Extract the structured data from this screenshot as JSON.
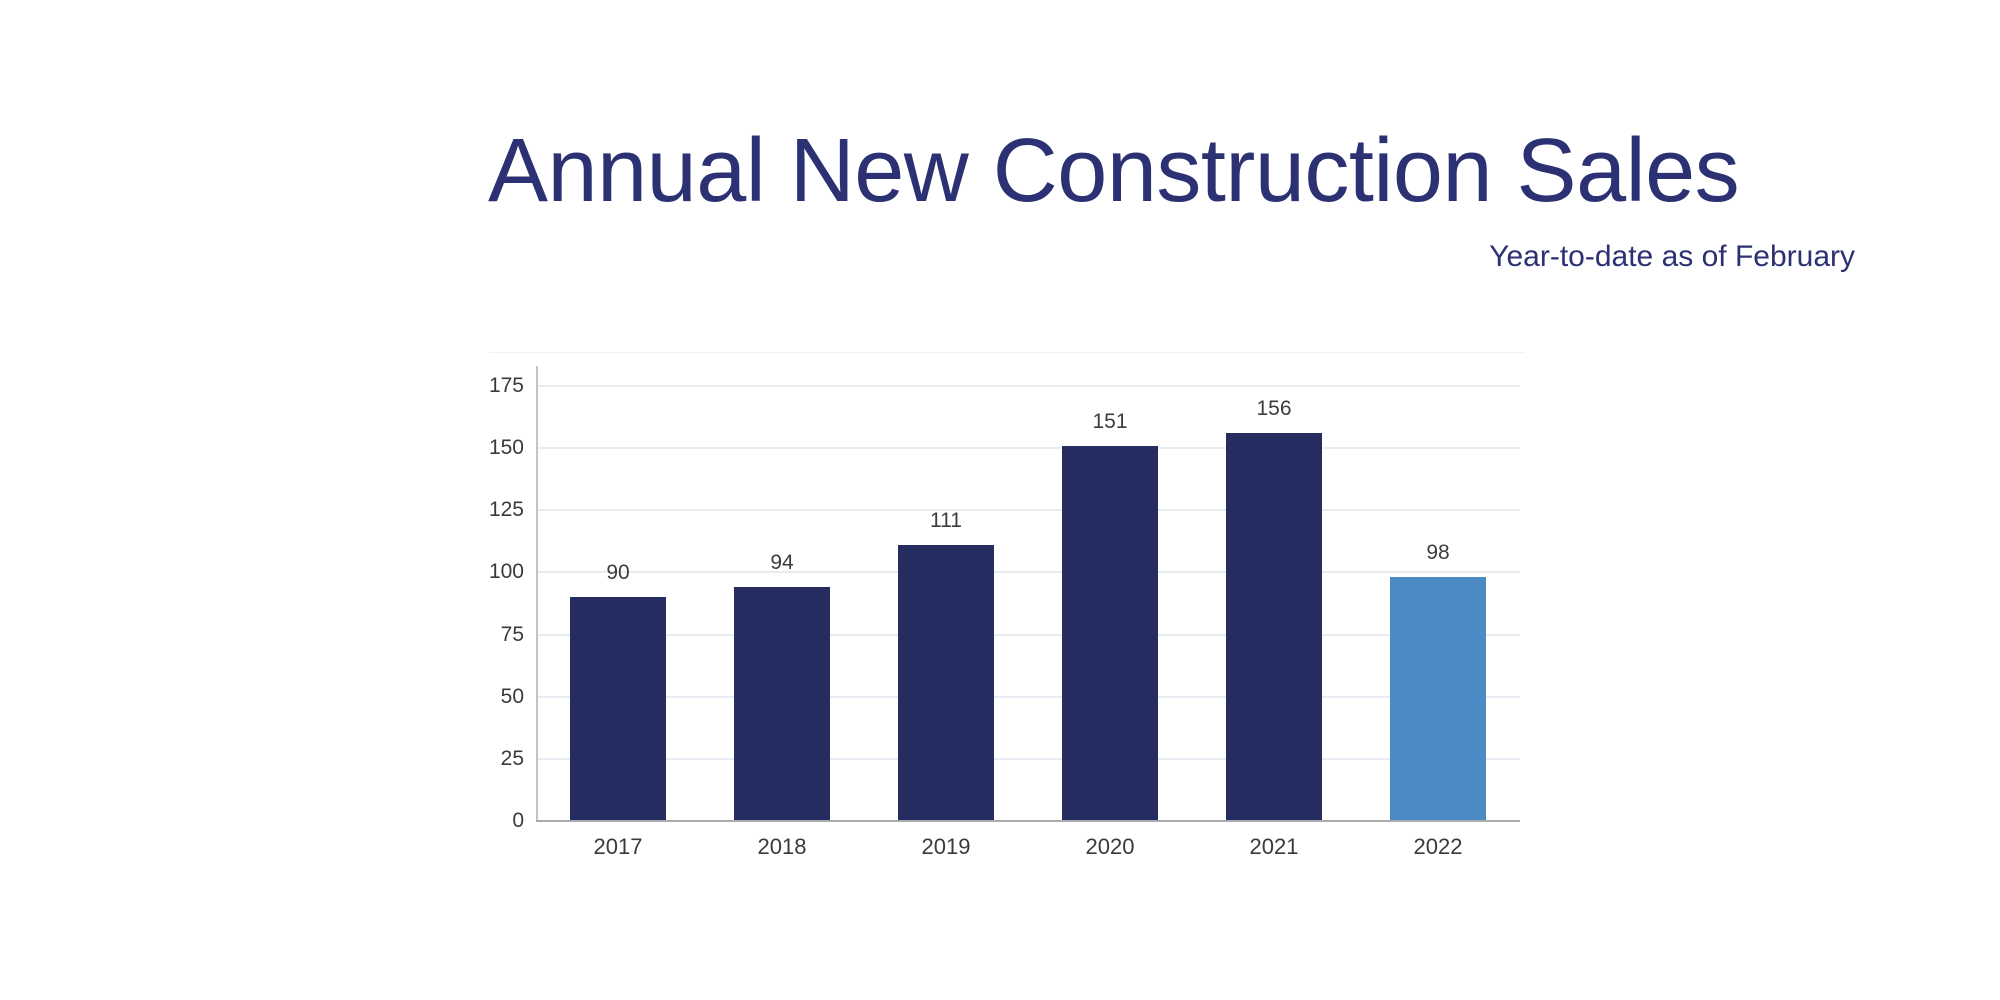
{
  "header": {
    "title": "Annual New Construction Sales",
    "subtitle": "Year-to-date as of February",
    "title_color": "#2b3172"
  },
  "chart_data": {
    "type": "bar",
    "title": "Annual New Construction Sales",
    "subtitle": "Year-to-date as of February",
    "categories": [
      "2017",
      "2018",
      "2019",
      "2020",
      "2021",
      "2022"
    ],
    "values": [
      90,
      94,
      111,
      151,
      156,
      98
    ],
    "bar_colors": [
      "#252c60",
      "#252c60",
      "#252c60",
      "#252c60",
      "#252c60",
      "#4a8bc6"
    ],
    "highlight_index": 5,
    "highlight_color": "#4a8bc6",
    "base_color": "#252c60",
    "xlabel": "",
    "ylabel": "",
    "ylim": [
      0,
      175
    ],
    "yticks": [
      0,
      25,
      50,
      75,
      100,
      125,
      150,
      175
    ],
    "grid": true,
    "legend": "none",
    "gridline_color": "#e9ecf3",
    "axis_line_color": "#c3c4c8",
    "baseline_color": "#aaacb0",
    "label_color": "#3c3c3c"
  }
}
